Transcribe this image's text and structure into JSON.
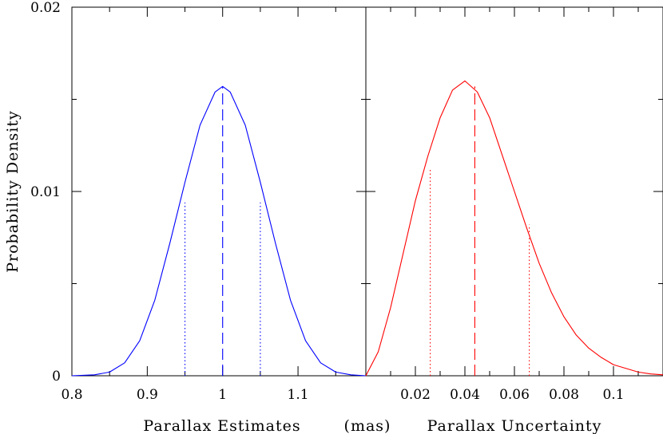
{
  "chart_data": [
    {
      "type": "line",
      "panel": "left",
      "xlabel": "Parallax Estimates",
      "ylabel": "Probability Density",
      "xlim": [
        0.8,
        1.19
      ],
      "ylim": [
        0,
        0.02
      ],
      "x_ticks": [
        {
          "value": 0.8,
          "label": "0.8"
        },
        {
          "value": 0.9,
          "label": "0.9"
        },
        {
          "value": 1.0,
          "label": "1"
        },
        {
          "value": 1.1,
          "label": "1.1"
        }
      ],
      "y_ticks": [
        {
          "value": 0,
          "label": "0"
        },
        {
          "value": 0.01,
          "label": "0.01"
        },
        {
          "value": 0.02,
          "label": "0.02"
        }
      ],
      "series": [
        {
          "color": "#0000ff",
          "style": "solid",
          "points": [
            [
              0.8,
              0.0
            ],
            [
              0.83,
              5e-05
            ],
            [
              0.85,
              0.0002
            ],
            [
              0.87,
              0.0007
            ],
            [
              0.89,
              0.0019
            ],
            [
              0.91,
              0.0041
            ],
            [
              0.93,
              0.0072
            ],
            [
              0.95,
              0.0105
            ],
            [
              0.97,
              0.0136
            ],
            [
              0.99,
              0.0154
            ],
            [
              1.0,
              0.0157
            ],
            [
              1.01,
              0.0154
            ],
            [
              1.03,
              0.0136
            ],
            [
              1.05,
              0.0105
            ],
            [
              1.07,
              0.0072
            ],
            [
              1.09,
              0.0041
            ],
            [
              1.11,
              0.0019
            ],
            [
              1.13,
              0.0007
            ],
            [
              1.15,
              0.0002
            ],
            [
              1.17,
              5e-05
            ],
            [
              1.19,
              0.0
            ]
          ]
        }
      ],
      "markers": [
        {
          "x": 0.95,
          "y": 0.0094,
          "color": "#0000ff",
          "style": "dotted"
        },
        {
          "x": 1.0,
          "y": 0.0157,
          "color": "#0000ff",
          "style": "dashed"
        },
        {
          "x": 1.05,
          "y": 0.0094,
          "color": "#0000ff",
          "style": "dotted"
        }
      ]
    },
    {
      "type": "line",
      "panel": "right",
      "xlabel": "Parallax Uncertainty",
      "xlim": [
        0.0,
        0.12
      ],
      "ylim": [
        0,
        0.02
      ],
      "x_ticks": [
        {
          "value": 0.02,
          "label": "0.02"
        },
        {
          "value": 0.04,
          "label": "0.04"
        },
        {
          "value": 0.06,
          "label": "0.06"
        },
        {
          "value": 0.08,
          "label": "0.08"
        },
        {
          "value": 0.1,
          "label": "0.1"
        }
      ],
      "y_ticks": [
        {
          "value": 0,
          "label": ""
        },
        {
          "value": 0.01,
          "label": ""
        },
        {
          "value": 0.02,
          "label": ""
        }
      ],
      "series": [
        {
          "color": "#ff0000",
          "style": "solid",
          "points": [
            [
              0.0,
              0.0
            ],
            [
              0.005,
              0.0013
            ],
            [
              0.01,
              0.0037
            ],
            [
              0.015,
              0.0066
            ],
            [
              0.02,
              0.0095
            ],
            [
              0.025,
              0.0119
            ],
            [
              0.03,
              0.014
            ],
            [
              0.035,
              0.0155
            ],
            [
              0.04,
              0.016
            ],
            [
              0.045,
              0.0154
            ],
            [
              0.05,
              0.014
            ],
            [
              0.055,
              0.012
            ],
            [
              0.06,
              0.01
            ],
            [
              0.065,
              0.008
            ],
            [
              0.07,
              0.0061
            ],
            [
              0.075,
              0.0045
            ],
            [
              0.08,
              0.0032
            ],
            [
              0.085,
              0.0022
            ],
            [
              0.09,
              0.0015
            ],
            [
              0.095,
              0.001
            ],
            [
              0.1,
              0.0006
            ],
            [
              0.105,
              0.0004
            ],
            [
              0.11,
              0.0002
            ],
            [
              0.115,
              0.0001
            ],
            [
              0.12,
              5e-05
            ]
          ]
        }
      ],
      "markers": [
        {
          "x": 0.026,
          "y": 0.0113,
          "color": "#ff0000",
          "style": "dotted"
        },
        {
          "x": 0.044,
          "y": 0.0157,
          "color": "#ff0000",
          "style": "dashed"
        },
        {
          "x": 0.066,
          "y": 0.0082,
          "color": "#ff0000",
          "style": "dotted"
        }
      ]
    }
  ],
  "shared_unit_label": "(mas)"
}
